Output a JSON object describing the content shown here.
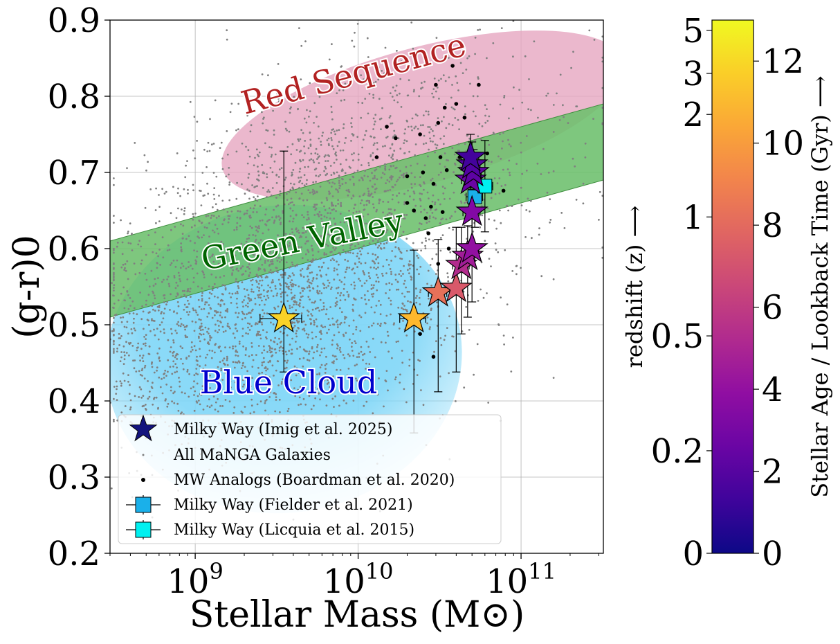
{
  "chart_data": {
    "type": "scatter",
    "xlabel": "Stellar Mass (M⊙)",
    "ylabel": "(g-r)0",
    "x_scale": "log",
    "xlim": [
      300000000,
      320000000000
    ],
    "ylim": [
      0.2,
      0.9
    ],
    "x_ticks": [
      {
        "value": 1000000000,
        "base": "10",
        "exp": "9"
      },
      {
        "value": 10000000000,
        "base": "10",
        "exp": "10"
      },
      {
        "value": 100000000000,
        "base": "10",
        "exp": "11"
      }
    ],
    "y_ticks": [
      {
        "value": 0.2,
        "label": "0.2"
      },
      {
        "value": 0.3,
        "label": "0.3"
      },
      {
        "value": 0.4,
        "label": "0.4"
      },
      {
        "value": 0.5,
        "label": "0.5"
      },
      {
        "value": 0.6,
        "label": "0.6"
      },
      {
        "value": 0.7,
        "label": "0.7"
      },
      {
        "value": 0.8,
        "label": "0.8"
      },
      {
        "value": 0.9,
        "label": "0.9"
      }
    ],
    "grid": true,
    "region_labels": {
      "red_sequence": "Red Sequence",
      "green_valley": "Green Valley",
      "blue_cloud": "Blue Cloud"
    },
    "regions": {
      "red_sequence": {
        "center": [
          25000000000,
          0.775
        ],
        "color": "#e6a6c0"
      },
      "green_valley": {
        "lower_left": [
          300000000,
          0.51
        ],
        "lower_right": [
          320000000000,
          0.69
        ],
        "width": 0.1,
        "color": "#6cbf6c"
      },
      "blue_cloud": {
        "center": [
          3500000000,
          0.455
        ],
        "color": "#7fd6f7"
      }
    },
    "legend": {
      "position": "lower-left",
      "entries": [
        {
          "label": "Milky Way (Imig et al. 2025)",
          "marker": "star",
          "color": "#13137d"
        },
        {
          "label": "All MaNGA Galaxies",
          "marker": "small-dot",
          "color": "#808080"
        },
        {
          "label": "MW Analogs (Boardman et al. 2020)",
          "marker": "dot",
          "color": "#000000"
        },
        {
          "label": "Milky Way (Fielder et al. 2021)",
          "marker": "square",
          "color": "#1ab0ea"
        },
        {
          "label": "Milky Way (Licquia et al. 2015)",
          "marker": "square",
          "color": "#00f0f0"
        }
      ]
    },
    "series": [
      {
        "name": "Milky Way (Imig et al. 2025)",
        "points": [
          {
            "x": 3500000000,
            "y": 0.508,
            "age_gyr": 11.8,
            "yerr_lo": 0.07,
            "yerr_hi": 0.22,
            "xerr": 1000000000
          },
          {
            "x": 22000000000,
            "y": 0.508,
            "age_gyr": 11.0,
            "yerr_lo": 0.15,
            "yerr_hi": 0.09,
            "xerr": 4000000000
          },
          {
            "x": 31000000000,
            "y": 0.542,
            "age_gyr": 8.3,
            "yerr_lo": 0.13,
            "yerr_hi": 0.07,
            "xerr": 4000000000
          },
          {
            "x": 40000000000,
            "y": 0.548,
            "age_gyr": 7.3,
            "yerr_lo": 0.11,
            "yerr_hi": 0.08,
            "xerr": 4000000000
          },
          {
            "x": 43000000000,
            "y": 0.578,
            "age_gyr": 5.3,
            "yerr_lo": 0.09,
            "yerr_hi": 0.05,
            "xerr": 5000000000
          },
          {
            "x": 47000000000,
            "y": 0.59,
            "age_gyr": 4.6,
            "yerr_lo": 0.08,
            "yerr_hi": 0.04,
            "xerr": 5000000000
          },
          {
            "x": 50000000000,
            "y": 0.6,
            "age_gyr": 4.0,
            "yerr_lo": 0.07,
            "yerr_hi": 0.04,
            "xerr": 5000000000
          },
          {
            "x": 50000000000,
            "y": 0.648,
            "age_gyr": 3.4,
            "yerr_lo": 0.05,
            "yerr_hi": 0.03,
            "xerr": 6000000000
          },
          {
            "x": 49000000000,
            "y": 0.69,
            "age_gyr": 2.6,
            "yerr_lo": 0.04,
            "yerr_hi": 0.03,
            "xerr": 6000000000
          },
          {
            "x": 51000000000,
            "y": 0.7,
            "age_gyr": 2.2,
            "yerr_lo": 0.04,
            "yerr_hi": 0.03,
            "xerr": 6000000000
          },
          {
            "x": 50000000000,
            "y": 0.71,
            "age_gyr": 1.8,
            "yerr_lo": 0.03,
            "yerr_hi": 0.03,
            "xerr": 6000000000
          },
          {
            "x": 49000000000,
            "y": 0.72,
            "age_gyr": 1.4,
            "yerr_lo": 0.03,
            "yerr_hi": 0.03,
            "xerr": 6000000000
          }
        ]
      },
      {
        "name": "Milky Way (Fielder et al. 2021)",
        "points": [
          {
            "x": 52000000000,
            "y": 0.668,
            "xerr": 6000000000,
            "yerr": 0.04
          }
        ]
      },
      {
        "name": "Milky Way (Licquia et al. 2015)",
        "points": [
          {
            "x": 60000000000,
            "y": 0.682,
            "xerr": 7000000000,
            "yerr": 0.06
          }
        ]
      },
      {
        "name": "MW Analogs (Boardman et al. 2020)",
        "points": [
          {
            "x": 13000000000,
            "y": 0.72
          },
          {
            "x": 15000000000,
            "y": 0.76
          },
          {
            "x": 17000000000,
            "y": 0.745
          },
          {
            "x": 20000000000,
            "y": 0.695
          },
          {
            "x": 20000000000,
            "y": 0.66
          },
          {
            "x": 22000000000,
            "y": 0.65
          },
          {
            "x": 24000000000,
            "y": 0.75
          },
          {
            "x": 25000000000,
            "y": 0.7
          },
          {
            "x": 26000000000,
            "y": 0.64
          },
          {
            "x": 28000000000,
            "y": 0.655
          },
          {
            "x": 29000000000,
            "y": 0.685
          },
          {
            "x": 30000000000,
            "y": 0.815
          },
          {
            "x": 31000000000,
            "y": 0.765
          },
          {
            "x": 32000000000,
            "y": 0.72
          },
          {
            "x": 33000000000,
            "y": 0.648
          },
          {
            "x": 34000000000,
            "y": 0.785
          },
          {
            "x": 35000000000,
            "y": 0.703
          },
          {
            "x": 36000000000,
            "y": 0.6
          },
          {
            "x": 38000000000,
            "y": 0.84
          },
          {
            "x": 40000000000,
            "y": 0.79
          },
          {
            "x": 42000000000,
            "y": 0.72
          },
          {
            "x": 45000000000,
            "y": 0.772
          },
          {
            "x": 48000000000,
            "y": 0.66
          },
          {
            "x": 55000000000,
            "y": 0.815
          },
          {
            "x": 62000000000,
            "y": 0.725
          },
          {
            "x": 78000000000,
            "y": 0.676
          },
          {
            "x": 29000000000,
            "y": 0.458
          },
          {
            "x": 24000000000,
            "y": 0.488
          },
          {
            "x": 31000000000,
            "y": 0.58
          },
          {
            "x": 27000000000,
            "y": 0.62
          }
        ]
      },
      {
        "name": "All MaNGA Galaxies",
        "generated": true,
        "count": 3600,
        "seed": 7,
        "color": "#808080"
      }
    ]
  },
  "colorbar": {
    "colormap": "plasma",
    "age_label": "Stellar Age / Lookback Time (Gyr) ⟶",
    "redshift_label": "redshift (z) ⟶",
    "age_range": [
      0,
      13
    ],
    "age_ticks": [
      {
        "value": 0,
        "label": "0"
      },
      {
        "value": 2,
        "label": "2"
      },
      {
        "value": 4,
        "label": "4"
      },
      {
        "value": 6,
        "label": "6"
      },
      {
        "value": 8,
        "label": "8"
      },
      {
        "value": 10,
        "label": "10"
      },
      {
        "value": 12,
        "label": "12"
      }
    ],
    "redshift_ticks": [
      {
        "age_gyr": 0,
        "label": "0"
      },
      {
        "age_gyr": 2.5,
        "label": "0.2"
      },
      {
        "age_gyr": 5.3,
        "label": "0.5"
      },
      {
        "age_gyr": 8.2,
        "label": "1"
      },
      {
        "age_gyr": 10.7,
        "label": "2"
      },
      {
        "age_gyr": 11.7,
        "label": "3"
      },
      {
        "age_gyr": 12.75,
        "label": "5"
      }
    ]
  }
}
